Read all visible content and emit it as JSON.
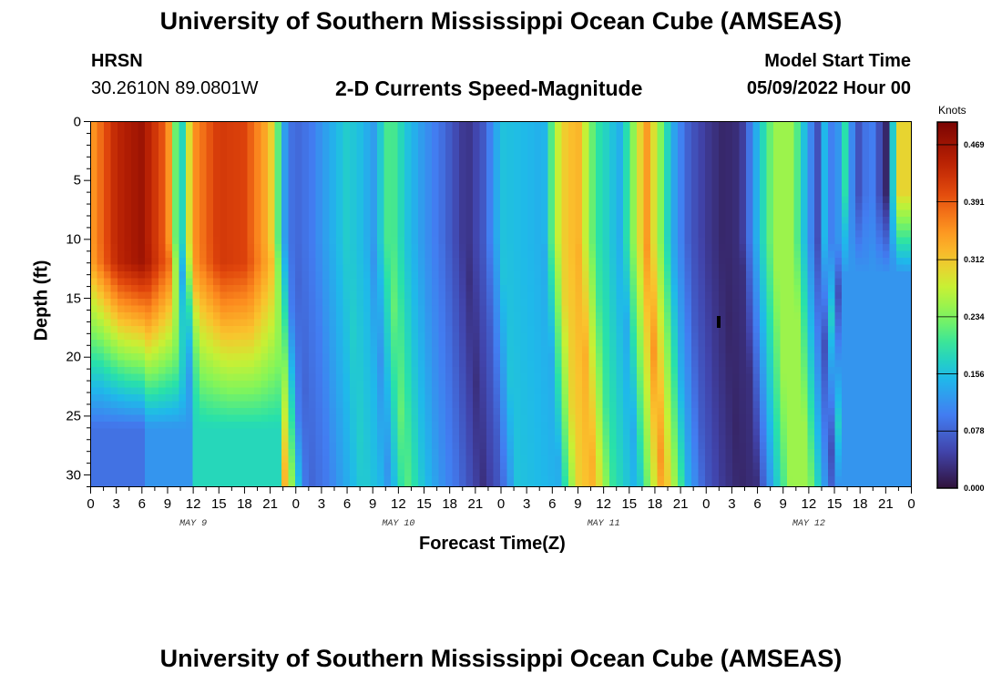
{
  "header": {
    "title": "University of Southern Mississippi Ocean Cube (AMSEAS)",
    "station": "HRSN",
    "coords": "30.2610N  89.0801W",
    "subtitle": "2-D Currents Speed-Magnitude",
    "model_start_label": "Model Start Time",
    "model_start_value": "05/09/2022 Hour 00"
  },
  "footer": {
    "title": "University of Southern Mississippi Ocean Cube (AMSEAS)"
  },
  "colors": {
    "text": "#000000",
    "background": "#ffffff"
  },
  "chart_data": {
    "type": "heatmap",
    "title": "2-D Currents Speed-Magnitude",
    "xlabel": "Forecast Time(Z)",
    "ylabel": "Depth (ft)",
    "x_range_hours": [
      0,
      96
    ],
    "y_range_ft": [
      0,
      31
    ],
    "x_tick_labels": [
      "0",
      "3",
      "6",
      "9",
      "12",
      "15",
      "18",
      "21",
      "0",
      "3",
      "6",
      "9",
      "12",
      "15",
      "18",
      "21",
      "0",
      "3",
      "6",
      "9",
      "12",
      "15",
      "18",
      "21",
      "0",
      "3",
      "6",
      "9",
      "12",
      "15",
      "18",
      "21",
      "0"
    ],
    "y_ticks": [
      0,
      5,
      10,
      15,
      20,
      25,
      30
    ],
    "day_labels": [
      "MAY 9",
      "MAY 10",
      "MAY 11",
      "MAY 12"
    ],
    "colorbar": {
      "unit": "Knots",
      "ticks": [
        "0.000",
        "0.078",
        "0.156",
        "0.234",
        "0.312",
        "0.391",
        "0.469"
      ],
      "min": 0,
      "max": 0.5
    },
    "surface_speed_profile": {
      "hours": [
        0,
        3,
        6,
        9,
        10.5,
        12,
        15,
        18,
        21,
        23,
        24,
        26,
        27,
        30,
        32,
        33,
        35,
        37,
        39,
        41,
        44,
        46,
        48,
        51,
        53,
        55,
        57,
        59,
        62,
        65,
        68,
        70,
        72,
        74,
        76,
        78,
        80,
        82,
        84,
        85,
        86,
        87,
        88,
        89,
        90,
        91,
        93,
        94.5,
        96
      ],
      "values": [
        0.34,
        0.44,
        0.47,
        0.38,
        0.14,
        0.35,
        0.42,
        0.41,
        0.32,
        0.1,
        0.08,
        0.1,
        0.12,
        0.17,
        0.15,
        0.12,
        0.22,
        0.16,
        0.12,
        0.09,
        0.03,
        0.07,
        0.16,
        0.15,
        0.14,
        0.3,
        0.33,
        0.2,
        0.14,
        0.35,
        0.14,
        0.07,
        0.04,
        0.02,
        0.03,
        0.15,
        0.25,
        0.25,
        0.12,
        0.06,
        0.17,
        0.06,
        0.21,
        0.11,
        0.05,
        0.12,
        0.02,
        0.3,
        0.3
      ]
    }
  }
}
